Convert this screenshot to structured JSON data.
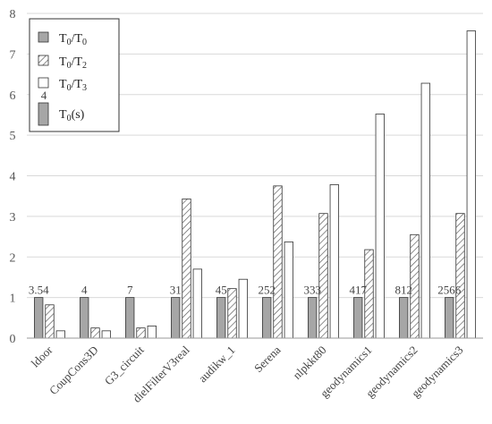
{
  "chart_data": {
    "type": "bar",
    "categories": [
      "ldoor",
      "CoupCons3D",
      "G3_circuit",
      "dielFilterV3real",
      "audikw_1",
      "Serena",
      "nlpkkt80",
      "geodynamics1",
      "geodynamics2",
      "geodynamics3"
    ],
    "series": [
      {
        "name": "T0/T0",
        "values": [
          1,
          1,
          1,
          1,
          1,
          1,
          1,
          1,
          1,
          1
        ],
        "color": "#a6a6a6",
        "pattern": "solid"
      },
      {
        "name": "T0/T2",
        "values": [
          0.82,
          0.25,
          0.25,
          3.43,
          1.22,
          3.75,
          3.07,
          2.18,
          2.55,
          3.07
        ],
        "color": "#ffffff",
        "pattern": "hatch"
      },
      {
        "name": "T0/T3",
        "values": [
          0.18,
          0.18,
          0.3,
          1.7,
          1.45,
          2.37,
          3.78,
          5.52,
          6.28,
          7.57
        ],
        "color": "#ffffff",
        "pattern": "none"
      }
    ],
    "data_labels": [
      "3.54",
      "4",
      "7",
      "31",
      "45",
      "252",
      "333",
      "417",
      "812",
      "2566"
    ],
    "legend_extra": {
      "name": "T0(s)",
      "value_label": "4",
      "color": "#a6a6a6"
    },
    "legend_position": "top-left",
    "ylim": [
      0,
      8
    ],
    "yticks": [
      "0",
      "1",
      "2",
      "3",
      "4",
      "5",
      "6",
      "7",
      "8"
    ],
    "grid": true,
    "title": "",
    "xlabel": "",
    "ylabel": ""
  }
}
